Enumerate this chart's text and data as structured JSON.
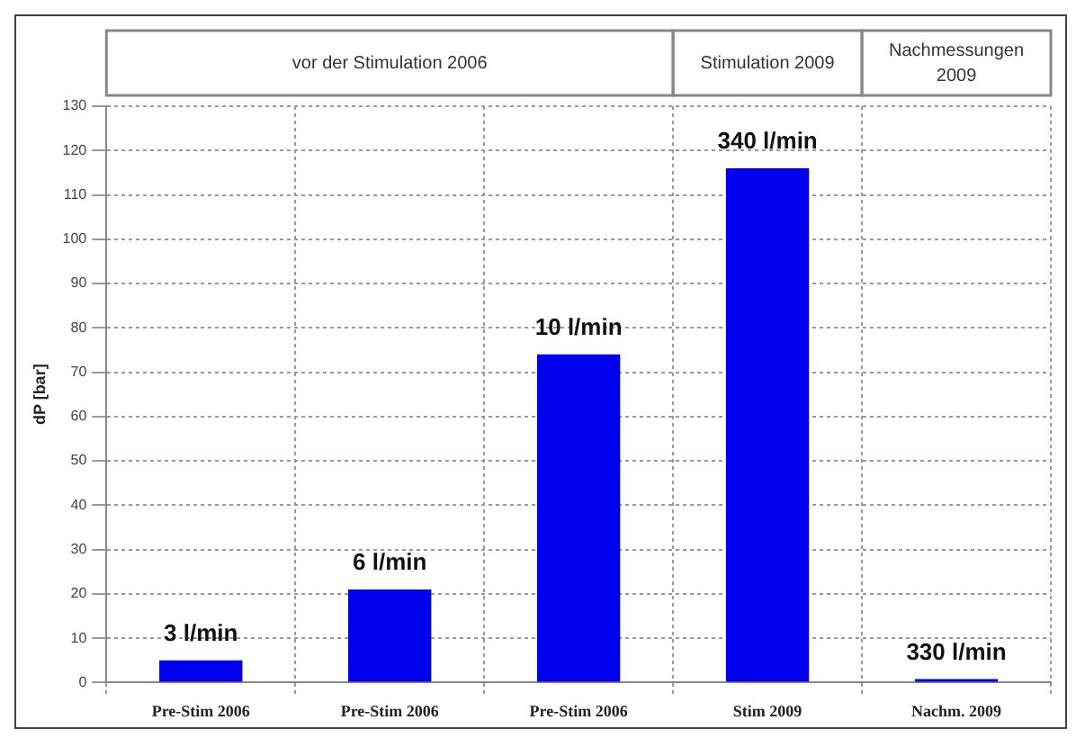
{
  "chart_data": {
    "type": "bar",
    "ylabel": "dP [bar]",
    "categories": [
      "Pre-Stim 2006",
      "Pre-Stim 2006",
      "Pre-Stim 2006",
      "Stim 2009",
      "Nachm. 2009"
    ],
    "values": [
      5,
      21,
      74,
      116,
      0.8
    ],
    "color": "#0000ee",
    "annotations": [
      "vor der Stimulation 2006",
      "Stimulation 2009",
      "Nachmessungen 2009",
      "3 l/min",
      "6 l/min",
      "10 l/min",
      "340 l/min",
      "330 l/min"
    ],
    "ylim": [
      0,
      130
    ],
    "yticks": [
      0,
      10,
      20,
      30,
      40,
      50,
      60,
      70,
      80,
      90,
      100,
      110,
      120,
      130
    ],
    "grid": true,
    "legend": false
  }
}
